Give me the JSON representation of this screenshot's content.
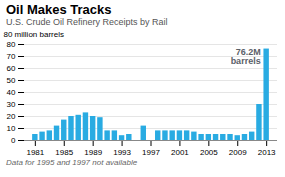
{
  "chart_data": {
    "type": "bar",
    "title": "Oil Makes Tracks",
    "subtitle": "U.S. Crude Oil Refinery Receipts by Rail",
    "y_label": "80 million barrels",
    "footnote": "Data for 1995 and 1997 not available",
    "x": [
      1981,
      1982,
      1983,
      1984,
      1985,
      1986,
      1987,
      1988,
      1989,
      1990,
      1991,
      1992,
      1993,
      1994,
      1996,
      1998,
      1999,
      2000,
      2001,
      2002,
      2003,
      2004,
      2005,
      2006,
      2007,
      2008,
      2009,
      2010,
      2011,
      2012,
      2013
    ],
    "values": [
      5,
      7,
      8,
      12,
      17,
      20,
      21,
      23,
      20,
      19,
      8,
      8,
      4,
      5,
      12,
      8,
      8,
      8,
      8,
      8,
      7,
      5,
      5,
      5,
      5,
      5,
      4,
      5,
      7,
      30,
      76.2
    ],
    "color": "#29abe2",
    "xlim": [
      1979.5,
      2014.5
    ],
    "xticks": [
      1981,
      1985,
      1989,
      1993,
      1997,
      2001,
      2005,
      2009,
      2013
    ],
    "ylim": [
      0,
      80
    ],
    "yticks": [
      0,
      10,
      20,
      30,
      40,
      50,
      60,
      70,
      80
    ],
    "grid": true,
    "annotations": [
      {
        "text": "76.2M\nbarrels",
        "x": 2013,
        "y": 76.2,
        "color": "#5a6068"
      }
    ]
  }
}
